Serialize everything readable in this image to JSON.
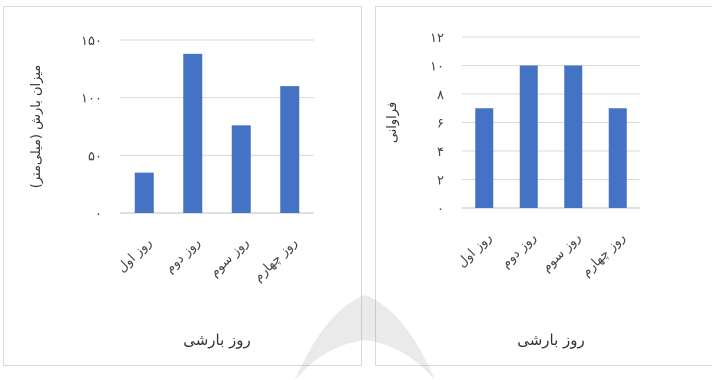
{
  "chart_data": [
    {
      "type": "bar",
      "categories": [
        "روز اول",
        "روز دوم",
        "روز سوم",
        "روز چهارم"
      ],
      "values": [
        35,
        138,
        76,
        110
      ],
      "xlabel": "روز بارشی",
      "ylabel": "میزان بارش (میلی‌متر)",
      "ylim": [
        0,
        150
      ],
      "yticks": [
        0,
        50,
        100,
        150
      ],
      "ytick_labels": [
        "۰",
        "۵۰",
        "۱۰۰",
        "۱۵۰"
      ],
      "grid": true,
      "bar_color": "#4472c4"
    },
    {
      "type": "bar",
      "categories": [
        "روز اول",
        "روز دوم",
        "روز سوم",
        "روز چهارم"
      ],
      "values": [
        7,
        10,
        10,
        7
      ],
      "xlabel": "روز بارشی",
      "ylabel": "فراوانی",
      "ylim": [
        0,
        12
      ],
      "yticks": [
        0,
        2,
        4,
        6,
        8,
        10,
        12
      ],
      "ytick_labels": [
        "۰",
        "۲",
        "۴",
        "۶",
        "۸",
        "۱۰",
        "۱۲"
      ],
      "grid": true,
      "bar_color": "#4472c4"
    }
  ],
  "colors": {
    "grid": "#d9d9d9",
    "axis": "#bfbfbf"
  }
}
